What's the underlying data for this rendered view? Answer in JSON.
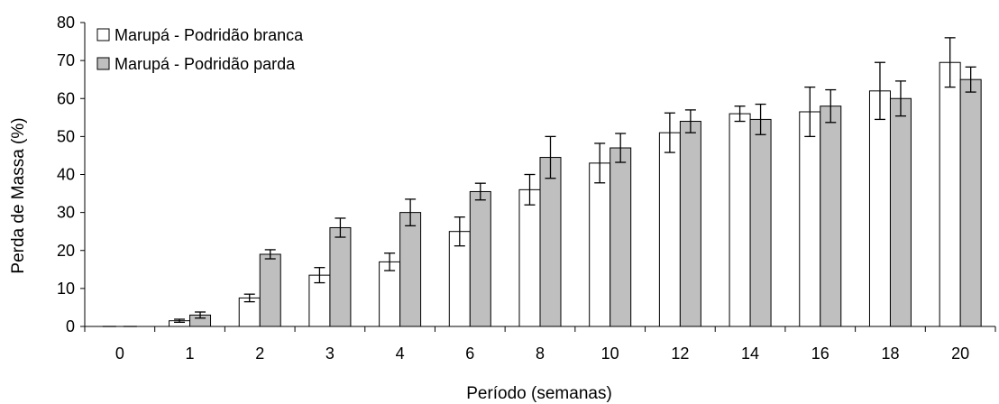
{
  "chart_data": {
    "type": "bar",
    "xlabel": "Período (semanas)",
    "ylabel": "Perda de Massa (%)",
    "ylim": [
      0,
      80
    ],
    "yticks": [
      0,
      10,
      20,
      30,
      40,
      50,
      60,
      70,
      80
    ],
    "categories": [
      "0",
      "1",
      "2",
      "3",
      "4",
      "6",
      "8",
      "10",
      "12",
      "14",
      "16",
      "18",
      "20"
    ],
    "legend_position": "top-left",
    "series": [
      {
        "name": "Marupá - Podridão branca",
        "color": "#ffffff",
        "values": [
          0,
          1.5,
          7.5,
          13.5,
          17,
          25,
          36,
          43,
          51,
          56,
          56.5,
          62,
          69.5
        ],
        "error": [
          0,
          0.4,
          1,
          2,
          2.3,
          3.8,
          4,
          5.2,
          5.2,
          2,
          6.5,
          7.5,
          6.5
        ]
      },
      {
        "name": "Marupá - Podridão parda",
        "color": "#bfbfbf",
        "values": [
          0,
          3,
          19,
          26,
          30,
          35.5,
          44.5,
          47,
          54,
          54.5,
          58,
          60,
          65
        ],
        "error": [
          0,
          0.8,
          1.2,
          2.5,
          3.5,
          2.2,
          5.5,
          3.8,
          3,
          4,
          4.3,
          4.6,
          3.3
        ]
      }
    ]
  }
}
